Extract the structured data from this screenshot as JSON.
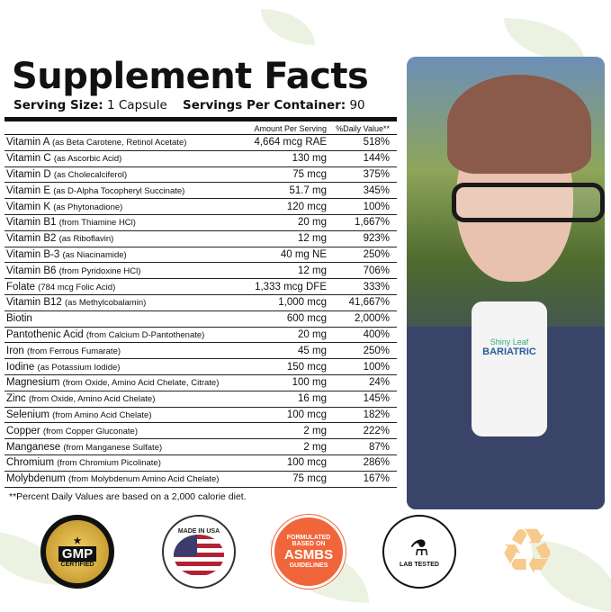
{
  "title": "Supplement Facts",
  "serving_size_label": "Serving Size:",
  "serving_size": "1 Capsule",
  "servings_label": "Servings Per Container:",
  "servings": "90",
  "header": {
    "amount": "Amount Per Serving",
    "dv": "%Daily Value**"
  },
  "rows": [
    {
      "name": "Vitamin A",
      "source": "(as Beta Carotene, Retinol Acetate)",
      "amount": "4,664 mcg RAE",
      "dv": "518%"
    },
    {
      "name": "Vitamin C",
      "source": "(as Ascorbic Acid)",
      "amount": "130 mg",
      "dv": "144%"
    },
    {
      "name": "Vitamin D",
      "source": "(as Cholecalciferol)",
      "amount": "75 mcg",
      "dv": "375%"
    },
    {
      "name": "Vitamin E",
      "source": "(as D-Alpha Tocopheryl Succinate)",
      "amount": "51.7 mg",
      "dv": "345%"
    },
    {
      "name": "Vitamin K",
      "source": "(as Phytonadione)",
      "amount": "120 mcg",
      "dv": "100%"
    },
    {
      "name": "Vitamin B1",
      "source": "(from Thiamine HCl)",
      "amount": "20 mg",
      "dv": "1,667%"
    },
    {
      "name": "Vitamin B2",
      "source": "(as Riboflavin)",
      "amount": "12 mg",
      "dv": "923%"
    },
    {
      "name": "Vitamin  B-3",
      "source": "(as Niacinamide)",
      "amount": "40 mg NE",
      "dv": "250%"
    },
    {
      "name": "Vitamin B6",
      "source": "(from Pyridoxine HCl)",
      "amount": "12 mg",
      "dv": "706%"
    },
    {
      "name": "Folate",
      "source": "(784 mcg Folic Acid)",
      "amount": "1,333 mcg DFE",
      "dv": "333%"
    },
    {
      "name": "Vitamin B12",
      "source": "(as Methylcobalamin)",
      "amount": "1,000 mcg",
      "dv": "41,667%"
    },
    {
      "name": "Biotin",
      "source": "",
      "amount": "600 mcg",
      "dv": "2,000%"
    },
    {
      "name": "Pantothenic Acid",
      "source": "(from Calcium D-Pantothenate)",
      "amount": "20 mg",
      "dv": "400%"
    },
    {
      "name": "Iron",
      "source": "(from Ferrous Fumarate)",
      "amount": "45 mg",
      "dv": "250%"
    },
    {
      "name": "Iodine",
      "source": "(as Potassium Iodide)",
      "amount": "150 mcg",
      "dv": "100%"
    },
    {
      "name": "Magnesium",
      "source": "(from Oxide, Amino Acid Chelate, Citrate)",
      "amount": "100 mg",
      "dv": "24%"
    },
    {
      "name": "Zinc",
      "source": "(from Oxide, Amino Acid Chelate)",
      "amount": "16 mg",
      "dv": "145%"
    },
    {
      "name": "Selenium",
      "source": "(from Amino Acid Chelate)",
      "amount": "100 mcg",
      "dv": "182%"
    },
    {
      "name": "Copper",
      "source": "(from Copper Gluconate)",
      "amount": "2 mg",
      "dv": "222%"
    },
    {
      "name": "Manganese",
      "source": "(from Manganese Sulfate)",
      "amount": "2 mg",
      "dv": "87%"
    },
    {
      "name": "Chromium",
      "source": "(from Chromium Picolinate)",
      "amount": "100 mcg",
      "dv": "286%"
    },
    {
      "name": "Molybdenum",
      "source": "(from Molybdenum Amino Acid Chelate)",
      "amount": "75 mcg",
      "dv": "167%"
    }
  ],
  "footnote": "**Percent Daily Values are based on a 2,000 calorie diet.",
  "bottle": {
    "brand": "Shiny Leaf",
    "label": "BARIATRIC"
  },
  "badges": {
    "gmp": {
      "title": "GMP",
      "sub": "CERTIFIED",
      "color": "#c9a227"
    },
    "usa": {
      "text": "MADE IN USA"
    },
    "asmbs": {
      "line1": "FORMULATED",
      "line2": "BASED ON",
      "line3": "ASMBS",
      "line4": "GUIDELINES",
      "color": "#f0663a"
    },
    "lab": {
      "text": "LAB TESTED"
    },
    "recycle": {
      "icon": "recycle-icon",
      "color": "#f7c98a"
    }
  },
  "leaf_color": "#e7efd9"
}
